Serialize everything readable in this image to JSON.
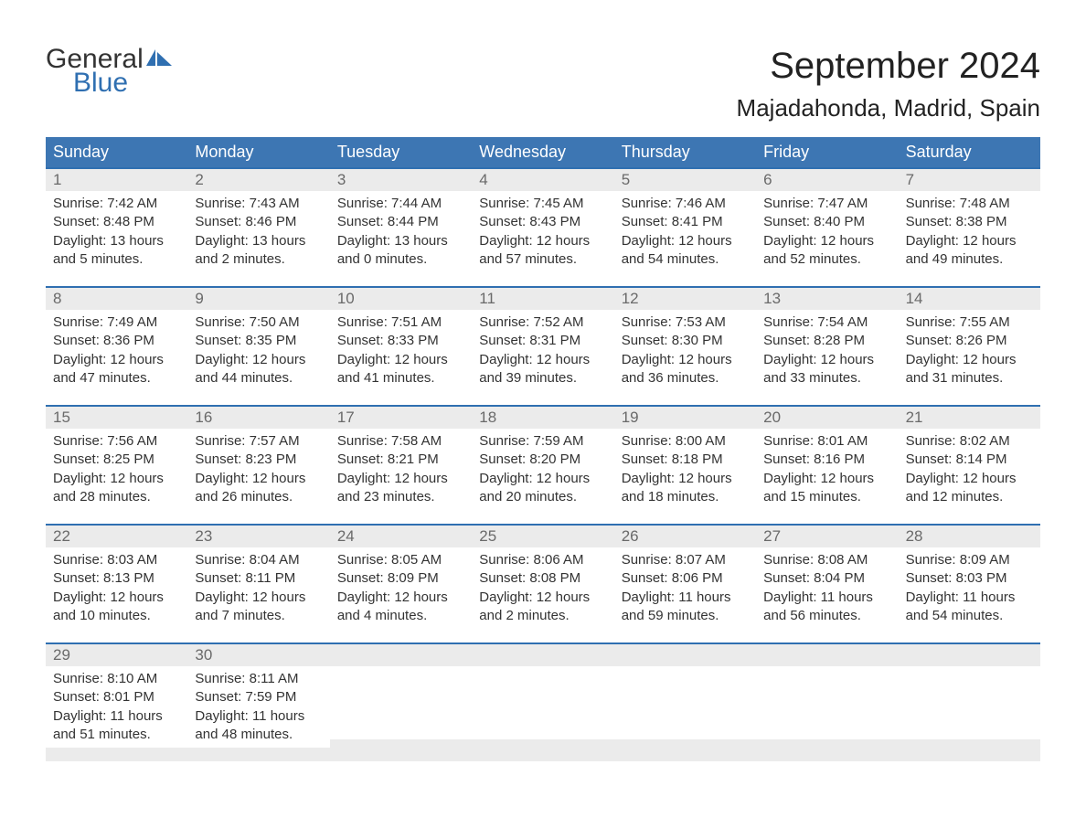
{
  "logo": {
    "word1": "General",
    "word2": "Blue"
  },
  "title": "September 2024",
  "location": "Majadahonda, Madrid, Spain",
  "colors": {
    "header_bg": "#3d76b3",
    "header_text": "#ffffff",
    "week_border": "#2f6fb1",
    "daynum_bg": "#ebebeb",
    "daynum_text": "#6a6a6a",
    "body_bg": "#ffffff",
    "body_text": "#333333",
    "logo_blue": "#2f6fb1"
  },
  "weekdays": [
    "Sunday",
    "Monday",
    "Tuesday",
    "Wednesday",
    "Thursday",
    "Friday",
    "Saturday"
  ],
  "weeks": [
    [
      {
        "n": "1",
        "sunrise": "7:42 AM",
        "sunset": "8:48 PM",
        "day_h": "13",
        "day_m": "5"
      },
      {
        "n": "2",
        "sunrise": "7:43 AM",
        "sunset": "8:46 PM",
        "day_h": "13",
        "day_m": "2"
      },
      {
        "n": "3",
        "sunrise": "7:44 AM",
        "sunset": "8:44 PM",
        "day_h": "13",
        "day_m": "0"
      },
      {
        "n": "4",
        "sunrise": "7:45 AM",
        "sunset": "8:43 PM",
        "day_h": "12",
        "day_m": "57"
      },
      {
        "n": "5",
        "sunrise": "7:46 AM",
        "sunset": "8:41 PM",
        "day_h": "12",
        "day_m": "54"
      },
      {
        "n": "6",
        "sunrise": "7:47 AM",
        "sunset": "8:40 PM",
        "day_h": "12",
        "day_m": "52"
      },
      {
        "n": "7",
        "sunrise": "7:48 AM",
        "sunset": "8:38 PM",
        "day_h": "12",
        "day_m": "49"
      }
    ],
    [
      {
        "n": "8",
        "sunrise": "7:49 AM",
        "sunset": "8:36 PM",
        "day_h": "12",
        "day_m": "47"
      },
      {
        "n": "9",
        "sunrise": "7:50 AM",
        "sunset": "8:35 PM",
        "day_h": "12",
        "day_m": "44"
      },
      {
        "n": "10",
        "sunrise": "7:51 AM",
        "sunset": "8:33 PM",
        "day_h": "12",
        "day_m": "41"
      },
      {
        "n": "11",
        "sunrise": "7:52 AM",
        "sunset": "8:31 PM",
        "day_h": "12",
        "day_m": "39"
      },
      {
        "n": "12",
        "sunrise": "7:53 AM",
        "sunset": "8:30 PM",
        "day_h": "12",
        "day_m": "36"
      },
      {
        "n": "13",
        "sunrise": "7:54 AM",
        "sunset": "8:28 PM",
        "day_h": "12",
        "day_m": "33"
      },
      {
        "n": "14",
        "sunrise": "7:55 AM",
        "sunset": "8:26 PM",
        "day_h": "12",
        "day_m": "31"
      }
    ],
    [
      {
        "n": "15",
        "sunrise": "7:56 AM",
        "sunset": "8:25 PM",
        "day_h": "12",
        "day_m": "28"
      },
      {
        "n": "16",
        "sunrise": "7:57 AM",
        "sunset": "8:23 PM",
        "day_h": "12",
        "day_m": "26"
      },
      {
        "n": "17",
        "sunrise": "7:58 AM",
        "sunset": "8:21 PM",
        "day_h": "12",
        "day_m": "23"
      },
      {
        "n": "18",
        "sunrise": "7:59 AM",
        "sunset": "8:20 PM",
        "day_h": "12",
        "day_m": "20"
      },
      {
        "n": "19",
        "sunrise": "8:00 AM",
        "sunset": "8:18 PM",
        "day_h": "12",
        "day_m": "18"
      },
      {
        "n": "20",
        "sunrise": "8:01 AM",
        "sunset": "8:16 PM",
        "day_h": "12",
        "day_m": "15"
      },
      {
        "n": "21",
        "sunrise": "8:02 AM",
        "sunset": "8:14 PM",
        "day_h": "12",
        "day_m": "12"
      }
    ],
    [
      {
        "n": "22",
        "sunrise": "8:03 AM",
        "sunset": "8:13 PM",
        "day_h": "12",
        "day_m": "10"
      },
      {
        "n": "23",
        "sunrise": "8:04 AM",
        "sunset": "8:11 PM",
        "day_h": "12",
        "day_m": "7"
      },
      {
        "n": "24",
        "sunrise": "8:05 AM",
        "sunset": "8:09 PM",
        "day_h": "12",
        "day_m": "4"
      },
      {
        "n": "25",
        "sunrise": "8:06 AM",
        "sunset": "8:08 PM",
        "day_h": "12",
        "day_m": "2"
      },
      {
        "n": "26",
        "sunrise": "8:07 AM",
        "sunset": "8:06 PM",
        "day_h": "11",
        "day_m": "59"
      },
      {
        "n": "27",
        "sunrise": "8:08 AM",
        "sunset": "8:04 PM",
        "day_h": "11",
        "day_m": "56"
      },
      {
        "n": "28",
        "sunrise": "8:09 AM",
        "sunset": "8:03 PM",
        "day_h": "11",
        "day_m": "54"
      }
    ],
    [
      {
        "n": "29",
        "sunrise": "8:10 AM",
        "sunset": "8:01 PM",
        "day_h": "11",
        "day_m": "51"
      },
      {
        "n": "30",
        "sunrise": "8:11 AM",
        "sunset": "7:59 PM",
        "day_h": "11",
        "day_m": "48"
      },
      {
        "empty": true
      },
      {
        "empty": true
      },
      {
        "empty": true
      },
      {
        "empty": true
      },
      {
        "empty": true
      }
    ]
  ],
  "labels": {
    "sunrise": "Sunrise:",
    "sunset": "Sunset:",
    "daylight1": "Daylight:",
    "hours_word": "hours",
    "and_word": "and",
    "minutes_word": "minutes."
  }
}
